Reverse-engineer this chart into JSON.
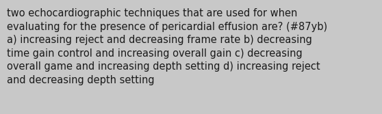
{
  "text": "two echocardiographic techniques that are used for when\nevaluating for the presence of pericardial effusion are? (#87yb)\na) increasing reject and decreasing frame rate b) decreasing\ntime gain control and increasing overall gain c) decreasing\noverall game and increasing depth setting d) increasing reject\nand decreasing depth setting",
  "background_color": "#c8c8c8",
  "text_color": "#1a1a1a",
  "font_size": 10.5,
  "fig_width": 5.58,
  "fig_height": 1.67,
  "dpi": 100
}
